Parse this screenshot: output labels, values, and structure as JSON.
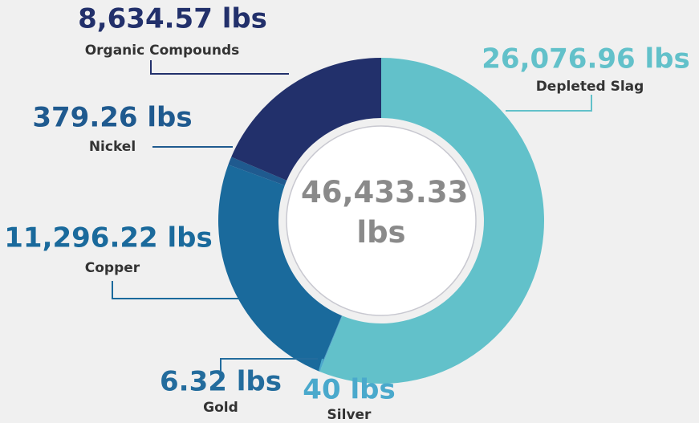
{
  "chart_data": {
    "type": "donut",
    "categories": [
      "Depleted Slag",
      "Silver",
      "Gold",
      "Copper",
      "Nickel",
      "Organic Compounds"
    ],
    "values": [
      26076.96,
      40,
      6.32,
      11296.22,
      379.26,
      8634.57
    ],
    "value_labels": [
      "26,076.96 lbs",
      "40 lbs",
      "6.32 lbs",
      "11,296.22 lbs",
      "379.26 lbs",
      "8,634.57 lbs"
    ],
    "colors": [
      "#62c1ca",
      "#4aa9cc",
      "#236c9d",
      "#1a6a9c",
      "#1f5a8f",
      "#22306b"
    ],
    "center_label": "46,433.33 lbs"
  }
}
